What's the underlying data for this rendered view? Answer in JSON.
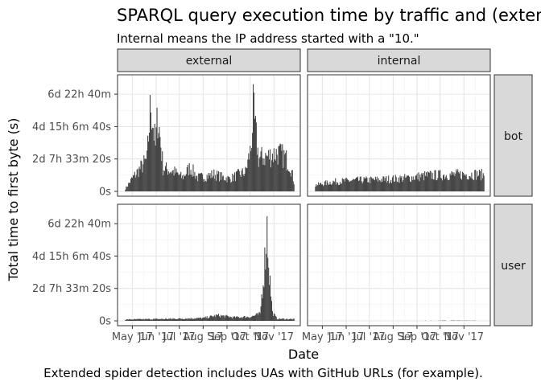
{
  "chart_data": {
    "type": "bar",
    "title": "SPARQL query execution time by traffic and (extended) agent type",
    "subtitle": "Internal means the IP address started with a \"10.\"",
    "caption": "Extended spider detection includes UAs with GitHub URLs (for example).",
    "xlabel": "Date",
    "ylabel": "Total time to first byte (s)",
    "facet_cols": [
      "external",
      "internal"
    ],
    "facet_rows": [
      "bot",
      "user"
    ],
    "x_ticks": [
      "May '17",
      "Jun '17",
      "Jul '17",
      "Aug '17",
      "Sep '17",
      "Oct '17",
      "Nov '17"
    ],
    "y_ticks": [
      "0s",
      "2d 7h 33m 20s",
      "4d 15h 6m 40s",
      "6d 22h 40m"
    ],
    "y_tick_values_s": [
      0,
      200000,
      400000,
      600000
    ],
    "ylim_s": [
      0,
      690000
    ],
    "x_range": [
      "2017-04-17",
      "2017-11-30"
    ],
    "grid": true,
    "panels": [
      {
        "col": "external",
        "row": "bot",
        "summary": [
          {
            "date": "2017-04-22",
            "value_s": 20000
          },
          {
            "date": "2017-05-01",
            "value_s": 95000
          },
          {
            "date": "2017-05-20",
            "value_s": 230000
          },
          {
            "date": "2017-05-25",
            "value_s": 650000
          },
          {
            "date": "2017-05-31",
            "value_s": 320000
          },
          {
            "date": "2017-06-03",
            "value_s": 560000
          },
          {
            "date": "2017-06-10",
            "value_s": 170000
          },
          {
            "date": "2017-06-25",
            "value_s": 140000
          },
          {
            "date": "2017-07-05",
            "value_s": 100000
          },
          {
            "date": "2017-07-15",
            "value_s": 175000
          },
          {
            "date": "2017-07-25",
            "value_s": 100000
          },
          {
            "date": "2017-08-05",
            "value_s": 110000
          },
          {
            "date": "2017-08-15",
            "value_s": 125000
          },
          {
            "date": "2017-08-25",
            "value_s": 105000
          },
          {
            "date": "2017-09-05",
            "value_s": 90000
          },
          {
            "date": "2017-09-15",
            "value_s": 120000
          },
          {
            "date": "2017-09-25",
            "value_s": 140000
          },
          {
            "date": "2017-10-02",
            "value_s": 310000
          },
          {
            "date": "2017-10-05",
            "value_s": 580000
          },
          {
            "date": "2017-10-12",
            "value_s": 240000
          },
          {
            "date": "2017-10-25",
            "value_s": 255000
          },
          {
            "date": "2017-11-05",
            "value_s": 280000
          },
          {
            "date": "2017-11-15",
            "value_s": 250000
          },
          {
            "date": "2017-11-22",
            "value_s": 190000
          },
          {
            "date": "2017-11-27",
            "value_s": 70000
          }
        ]
      },
      {
        "col": "internal",
        "row": "bot",
        "summary": [
          {
            "date": "2017-04-22",
            "value_s": 45000
          },
          {
            "date": "2017-05-15",
            "value_s": 70000
          },
          {
            "date": "2017-06-15",
            "value_s": 80000
          },
          {
            "date": "2017-07-15",
            "value_s": 85000
          },
          {
            "date": "2017-08-15",
            "value_s": 95000
          },
          {
            "date": "2017-09-15",
            "value_s": 115000
          },
          {
            "date": "2017-10-15",
            "value_s": 120000
          },
          {
            "date": "2017-11-15",
            "value_s": 125000
          },
          {
            "date": "2017-11-27",
            "value_s": 120000
          }
        ]
      },
      {
        "col": "external",
        "row": "user",
        "summary": [
          {
            "date": "2017-04-22",
            "value_s": 10000
          },
          {
            "date": "2017-06-15",
            "value_s": 14000
          },
          {
            "date": "2017-08-01",
            "value_s": 20000
          },
          {
            "date": "2017-08-20",
            "value_s": 40000
          },
          {
            "date": "2017-09-10",
            "value_s": 25000
          },
          {
            "date": "2017-10-02",
            "value_s": 30000
          },
          {
            "date": "2017-10-14",
            "value_s": 50000
          },
          {
            "date": "2017-10-20",
            "value_s": 430000
          },
          {
            "date": "2017-10-23",
            "value_s": 680000
          },
          {
            "date": "2017-10-26",
            "value_s": 350000
          },
          {
            "date": "2017-10-30",
            "value_s": 60000
          },
          {
            "date": "2017-11-05",
            "value_s": 15000
          },
          {
            "date": "2017-11-27",
            "value_s": 12000
          }
        ]
      },
      {
        "col": "internal",
        "row": "user",
        "summary": [
          {
            "date": "2017-04-22",
            "value_s": 0
          },
          {
            "date": "2017-11-10",
            "value_s": 2000
          },
          {
            "date": "2017-11-27",
            "value_s": 0
          }
        ]
      }
    ]
  }
}
